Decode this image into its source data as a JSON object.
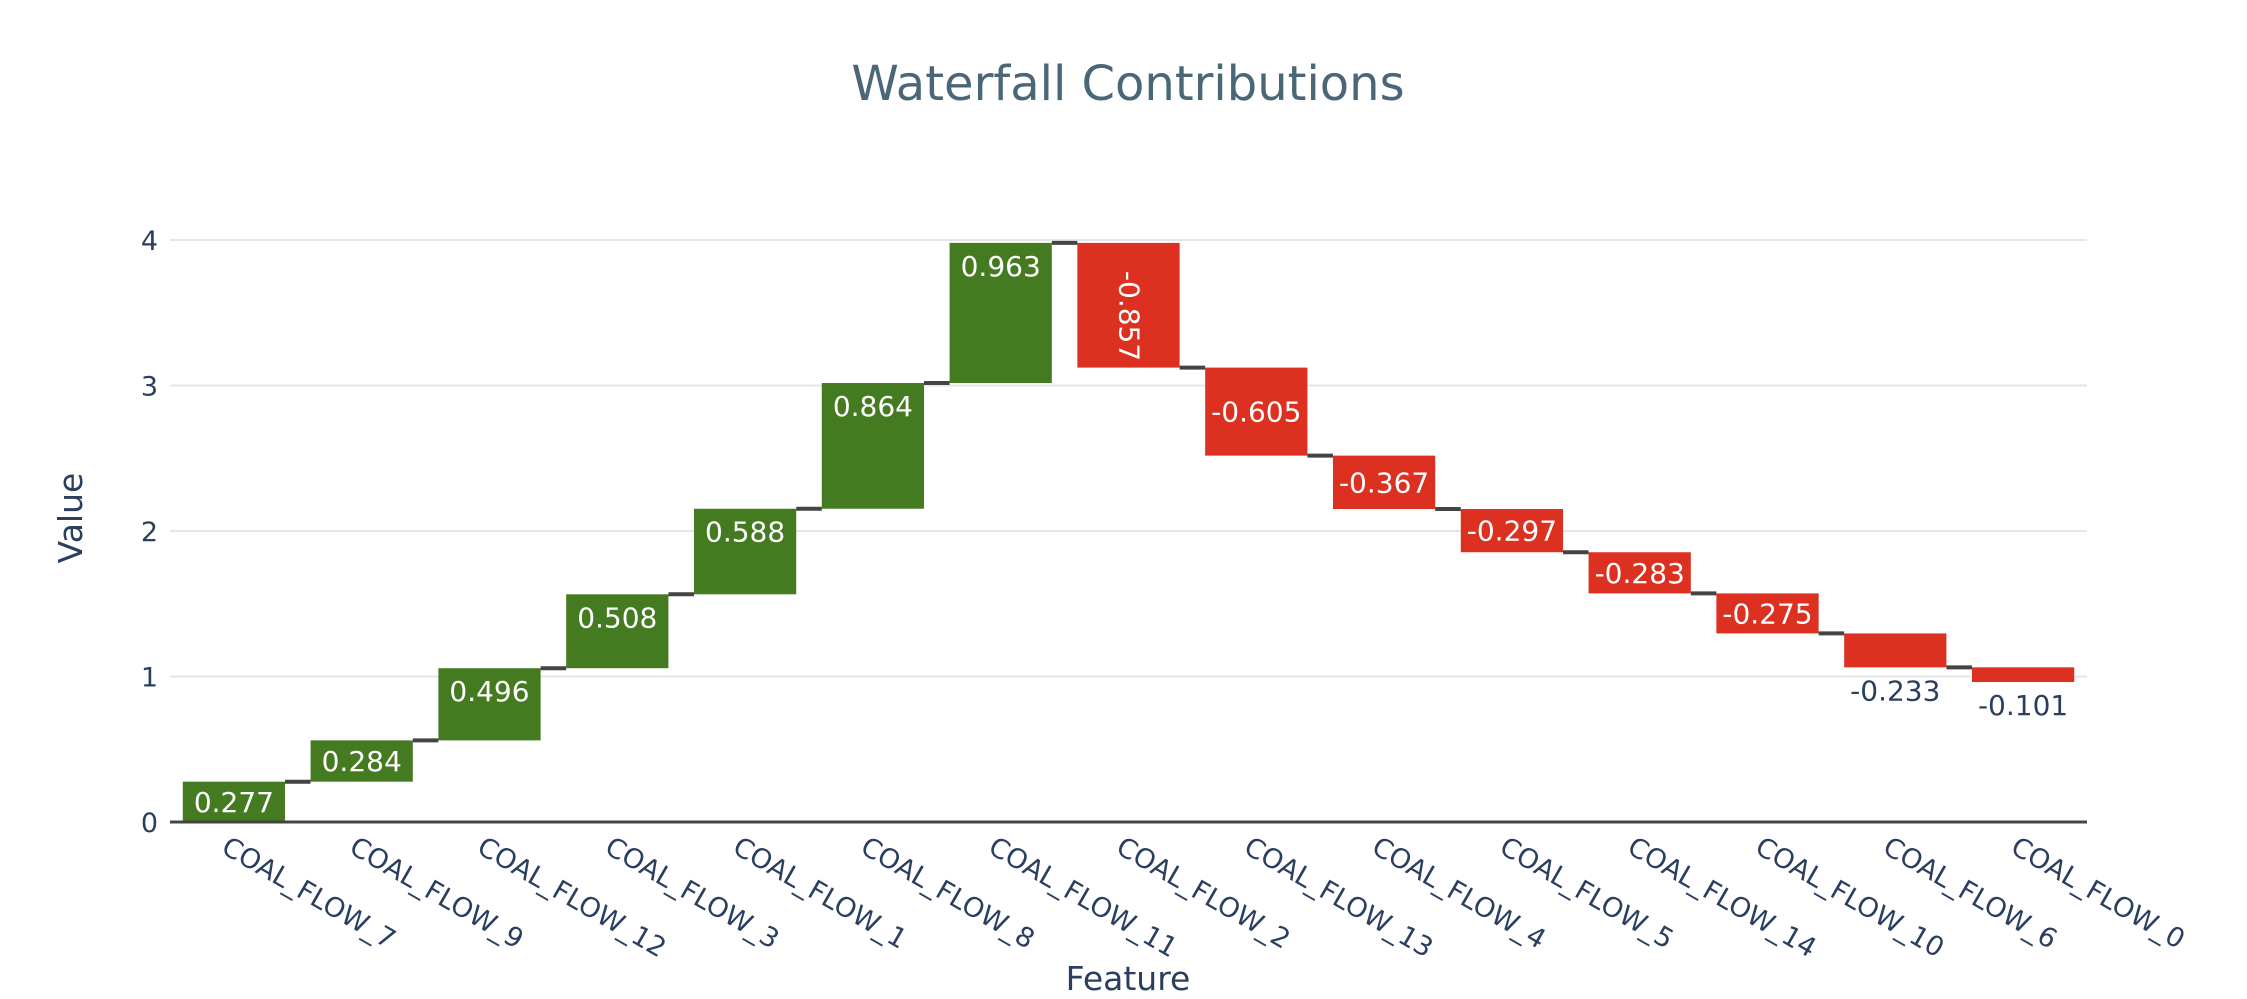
{
  "chart_data": {
    "type": "waterfall",
    "title": "Waterfall Contributions",
    "xlabel": "Feature",
    "ylabel": "Value",
    "ylim": [
      0,
      4.0
    ],
    "yticks": [
      0,
      1,
      2,
      3,
      4
    ],
    "grid": true,
    "legend": "none",
    "categories": [
      "COAL_FLOW_7",
      "COAL_FLOW_9",
      "COAL_FLOW_12",
      "COAL_FLOW_3",
      "COAL_FLOW_1",
      "COAL_FLOW_8",
      "COAL_FLOW_11",
      "COAL_FLOW_2",
      "COAL_FLOW_13",
      "COAL_FLOW_4",
      "COAL_FLOW_5",
      "COAL_FLOW_14",
      "COAL_FLOW_10",
      "COAL_FLOW_6",
      "COAL_FLOW_0"
    ],
    "values": [
      0.277,
      0.284,
      0.496,
      0.508,
      0.588,
      0.864,
      0.963,
      -0.857,
      -0.605,
      -0.367,
      -0.297,
      -0.283,
      -0.275,
      -0.233,
      -0.101
    ],
    "labels": [
      "0.277",
      "0.284",
      "0.496",
      "0.508",
      "0.588",
      "0.864",
      "0.963",
      "-0.857",
      "-0.605",
      "-0.367",
      "-0.297",
      "-0.283",
      "-0.275",
      "-0.233",
      "-0.101"
    ],
    "colors": {
      "increasing": "#457b20",
      "decreasing": "#dc3020",
      "connector": "#444444"
    }
  }
}
